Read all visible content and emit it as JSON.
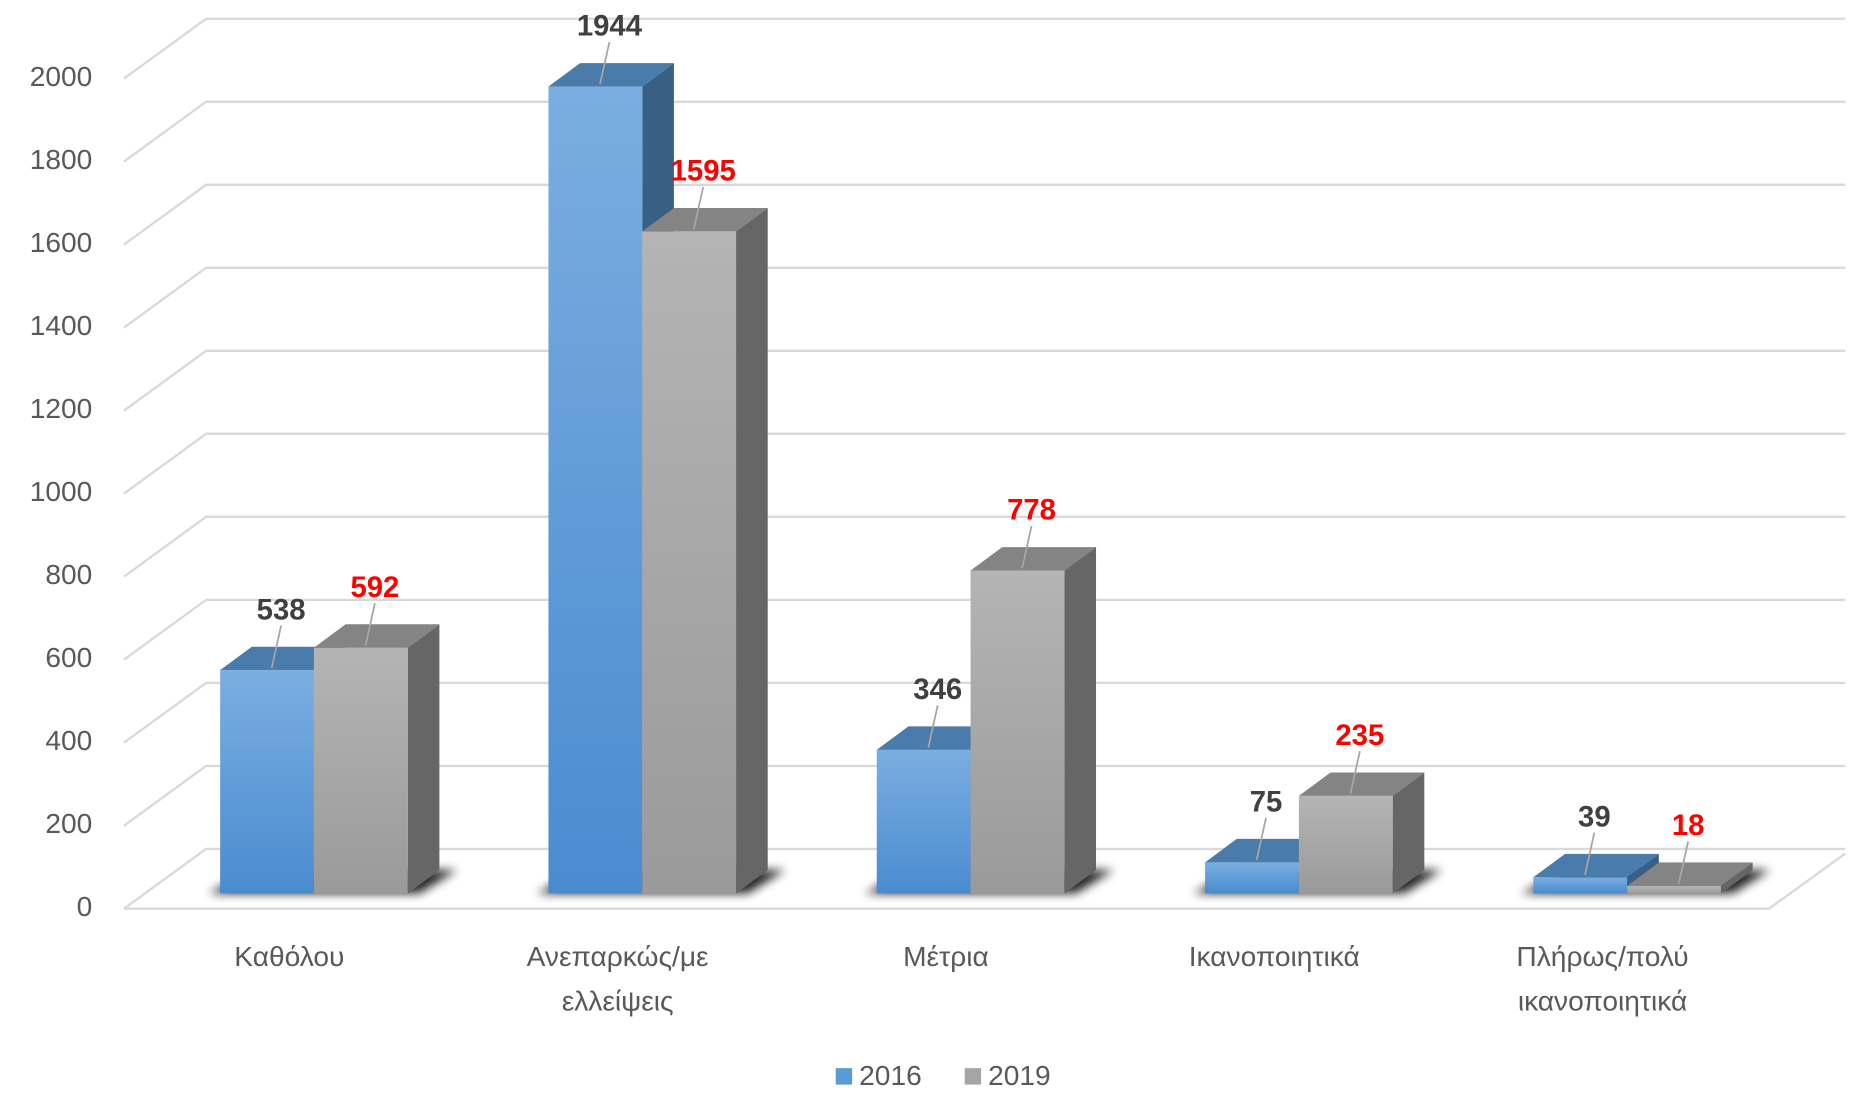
{
  "chart_data": {
    "type": "bar3d",
    "categories": [
      "Καθόλου",
      "Ανεπαρκώς/με ελλείψεις",
      "Μέτρια",
      "Ικανοποιητικά",
      "Πλήρως/πολύ ικανοποιητικά"
    ],
    "series": [
      {
        "name": "2016",
        "color": "#5b9bd5",
        "label_color": "#404040",
        "values": [
          538,
          1944,
          346,
          75,
          39
        ]
      },
      {
        "name": "2019",
        "color": "#a5a5a5",
        "label_color": "#ff0000",
        "values": [
          592,
          1595,
          778,
          235,
          18
        ]
      }
    ],
    "ylim": [
      0,
      2000
    ],
    "yticks": [
      0,
      200,
      400,
      600,
      800,
      1000,
      1200,
      1400,
      1600,
      1800,
      2000
    ],
    "grid": true,
    "legend": "bottom"
  }
}
